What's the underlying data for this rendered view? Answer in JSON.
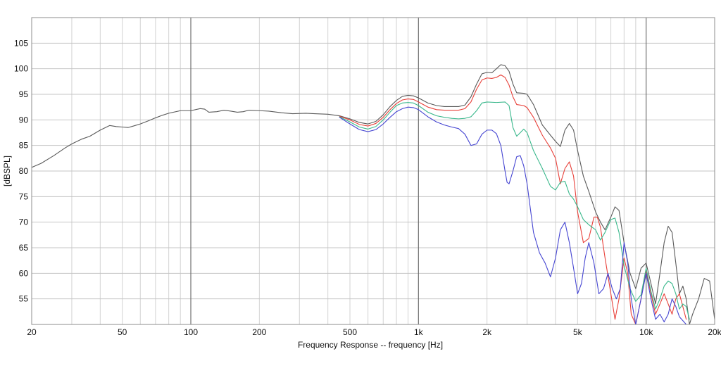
{
  "chart_data": {
    "type": "line",
    "title": "",
    "xlabel": "Frequency Response -- frequency [Hz]",
    "ylabel": "[dBSPL]",
    "xscale": "log",
    "xlim": [
      20,
      20000
    ],
    "ylim": [
      50,
      110
    ],
    "grid": true,
    "legend": "none",
    "x_ticks": [
      {
        "value": 20,
        "label": "20"
      },
      {
        "value": 50,
        "label": "50"
      },
      {
        "value": 100,
        "label": "100"
      },
      {
        "value": 200,
        "label": "200"
      },
      {
        "value": 500,
        "label": "500"
      },
      {
        "value": 1000,
        "label": "1k"
      },
      {
        "value": 2000,
        "label": "2k"
      },
      {
        "value": 5000,
        "label": "5k"
      },
      {
        "value": 10000,
        "label": "10k"
      },
      {
        "value": 20000,
        "label": "20k"
      }
    ],
    "y_ticks": [
      55,
      60,
      65,
      70,
      75,
      80,
      85,
      90,
      95,
      100,
      105
    ],
    "series": [
      {
        "color": "#5a5a5a",
        "points": [
          [
            20,
            80.7
          ],
          [
            22,
            81.5
          ],
          [
            25,
            83
          ],
          [
            28,
            84.5
          ],
          [
            30,
            85.3
          ],
          [
            33,
            86.2
          ],
          [
            36,
            86.8
          ],
          [
            40,
            88
          ],
          [
            44,
            88.9
          ],
          [
            47,
            88.7
          ],
          [
            50,
            88.6
          ],
          [
            53,
            88.5
          ],
          [
            56,
            88.8
          ],
          [
            60,
            89.2
          ],
          [
            65,
            89.8
          ],
          [
            70,
            90.4
          ],
          [
            75,
            90.9
          ],
          [
            80,
            91.3
          ],
          [
            90,
            91.8
          ],
          [
            100,
            91.8
          ],
          [
            110,
            92.2
          ],
          [
            115,
            92.1
          ],
          [
            120,
            91.5
          ],
          [
            130,
            91.6
          ],
          [
            140,
            91.9
          ],
          [
            150,
            91.7
          ],
          [
            160,
            91.5
          ],
          [
            170,
            91.6
          ],
          [
            180,
            91.9
          ],
          [
            200,
            91.8
          ],
          [
            220,
            91.7
          ],
          [
            250,
            91.4
          ],
          [
            280,
            91.2
          ],
          [
            320,
            91.3
          ],
          [
            350,
            91.2
          ],
          [
            400,
            91.1
          ],
          [
            450,
            90.8
          ],
          [
            500,
            90.2
          ],
          [
            550,
            89.5
          ],
          [
            600,
            89.2
          ],
          [
            650,
            89.7
          ],
          [
            700,
            91
          ],
          [
            750,
            92.6
          ],
          [
            800,
            93.8
          ],
          [
            850,
            94.6
          ],
          [
            900,
            94.8
          ],
          [
            950,
            94.7
          ],
          [
            1000,
            94.3
          ],
          [
            1100,
            93.3
          ],
          [
            1200,
            92.8
          ],
          [
            1300,
            92.6
          ],
          [
            1400,
            92.6
          ],
          [
            1500,
            92.6
          ],
          [
            1600,
            92.9
          ],
          [
            1700,
            94.5
          ],
          [
            1800,
            97
          ],
          [
            1900,
            99
          ],
          [
            2000,
            99.3
          ],
          [
            2100,
            99.2
          ],
          [
            2200,
            100
          ],
          [
            2300,
            100.8
          ],
          [
            2400,
            100.6
          ],
          [
            2500,
            99.5
          ],
          [
            2600,
            97
          ],
          [
            2700,
            95.3
          ],
          [
            2900,
            95.2
          ],
          [
            3000,
            95
          ],
          [
            3200,
            93
          ],
          [
            3500,
            89
          ],
          [
            3800,
            87
          ],
          [
            4000,
            85.8
          ],
          [
            4200,
            84.8
          ],
          [
            4400,
            88
          ],
          [
            4600,
            89.3
          ],
          [
            4800,
            88
          ],
          [
            5000,
            84
          ],
          [
            5300,
            79
          ],
          [
            5600,
            76
          ],
          [
            6000,
            72
          ],
          [
            6300,
            70
          ],
          [
            6600,
            68.5
          ],
          [
            7000,
            71
          ],
          [
            7300,
            73
          ],
          [
            7600,
            72.3
          ],
          [
            8000,
            66
          ],
          [
            8500,
            60
          ],
          [
            9000,
            57
          ],
          [
            9500,
            61
          ],
          [
            10000,
            62
          ],
          [
            10500,
            58
          ],
          [
            11000,
            54
          ],
          [
            11500,
            60
          ],
          [
            12000,
            66
          ],
          [
            12500,
            69.2
          ],
          [
            13000,
            68
          ],
          [
            13500,
            62
          ],
          [
            14000,
            56
          ],
          [
            14500,
            57.5
          ],
          [
            15000,
            55
          ],
          [
            15500,
            50
          ],
          [
            16000,
            52
          ],
          [
            17000,
            55
          ],
          [
            18000,
            59
          ],
          [
            19000,
            58.5
          ],
          [
            20000,
            51
          ]
        ]
      },
      {
        "color": "#e8413a",
        "points": [
          [
            450,
            90.7
          ],
          [
            500,
            90
          ],
          [
            550,
            89.1
          ],
          [
            600,
            88.8
          ],
          [
            650,
            89.3
          ],
          [
            700,
            90.5
          ],
          [
            750,
            92
          ],
          [
            800,
            93.2
          ],
          [
            850,
            93.9
          ],
          [
            900,
            94.1
          ],
          [
            950,
            94
          ],
          [
            1000,
            93.5
          ],
          [
            1100,
            92.5
          ],
          [
            1200,
            92
          ],
          [
            1300,
            91.9
          ],
          [
            1400,
            91.9
          ],
          [
            1500,
            91.9
          ],
          [
            1600,
            92.2
          ],
          [
            1700,
            93.5
          ],
          [
            1800,
            96
          ],
          [
            1900,
            97.8
          ],
          [
            2000,
            98.2
          ],
          [
            2100,
            98.1
          ],
          [
            2200,
            98.3
          ],
          [
            2300,
            98.8
          ],
          [
            2400,
            98.3
          ],
          [
            2500,
            96.8
          ],
          [
            2600,
            94.5
          ],
          [
            2700,
            93
          ],
          [
            2900,
            92.8
          ],
          [
            3000,
            92.4
          ],
          [
            3200,
            90.5
          ],
          [
            3500,
            87
          ],
          [
            3800,
            84.5
          ],
          [
            4000,
            82.5
          ],
          [
            4200,
            77.5
          ],
          [
            4400,
            80.5
          ],
          [
            4600,
            81.8
          ],
          [
            4800,
            79
          ],
          [
            5000,
            72
          ],
          [
            5300,
            66
          ],
          [
            5600,
            66.8
          ],
          [
            5900,
            71
          ],
          [
            6100,
            71
          ],
          [
            6300,
            69
          ],
          [
            6600,
            63
          ],
          [
            7000,
            56
          ],
          [
            7300,
            51
          ],
          [
            7600,
            55
          ],
          [
            8000,
            63
          ],
          [
            8300,
            60
          ],
          [
            8600,
            52
          ],
          [
            9000,
            50
          ],
          [
            9500,
            55
          ],
          [
            10000,
            60.5
          ],
          [
            10500,
            56
          ],
          [
            11000,
            52
          ],
          [
            11500,
            54
          ],
          [
            12000,
            56
          ],
          [
            12500,
            54
          ],
          [
            13000,
            52
          ],
          [
            13500,
            55
          ],
          [
            14000,
            56
          ],
          [
            15000,
            51
          ]
        ]
      },
      {
        "color": "#3ab88c",
        "points": [
          [
            450,
            90.6
          ],
          [
            500,
            89.6
          ],
          [
            550,
            88.6
          ],
          [
            600,
            88.2
          ],
          [
            650,
            88.7
          ],
          [
            700,
            90
          ],
          [
            750,
            91.5
          ],
          [
            800,
            92.8
          ],
          [
            850,
            93.3
          ],
          [
            900,
            93.4
          ],
          [
            950,
            93.3
          ],
          [
            1000,
            92.8
          ],
          [
            1100,
            91.5
          ],
          [
            1200,
            90.8
          ],
          [
            1300,
            90.5
          ],
          [
            1400,
            90.3
          ],
          [
            1500,
            90.2
          ],
          [
            1600,
            90.3
          ],
          [
            1700,
            90.6
          ],
          [
            1800,
            91.8
          ],
          [
            1900,
            93.3
          ],
          [
            2000,
            93.5
          ],
          [
            2200,
            93.4
          ],
          [
            2400,
            93.5
          ],
          [
            2500,
            92.8
          ],
          [
            2600,
            88.5
          ],
          [
            2700,
            86.8
          ],
          [
            2800,
            87.5
          ],
          [
            2900,
            88.2
          ],
          [
            3000,
            87.5
          ],
          [
            3200,
            84
          ],
          [
            3500,
            80.5
          ],
          [
            3800,
            77
          ],
          [
            4000,
            76.3
          ],
          [
            4200,
            77.8
          ],
          [
            4400,
            78
          ],
          [
            4600,
            75.5
          ],
          [
            4800,
            74.5
          ],
          [
            5000,
            73
          ],
          [
            5300,
            70.5
          ],
          [
            5600,
            69.5
          ],
          [
            6000,
            68.5
          ],
          [
            6300,
            66.5
          ],
          [
            6600,
            68
          ],
          [
            7000,
            70.5
          ],
          [
            7300,
            70.8
          ],
          [
            7600,
            68
          ],
          [
            8000,
            61.5
          ],
          [
            8500,
            57
          ],
          [
            9000,
            54.5
          ],
          [
            9500,
            55.8
          ],
          [
            10000,
            61
          ],
          [
            10500,
            56.5
          ],
          [
            11000,
            53
          ],
          [
            11500,
            55
          ],
          [
            12000,
            57.5
          ],
          [
            12500,
            58.5
          ],
          [
            13000,
            58
          ],
          [
            13500,
            56
          ],
          [
            14000,
            53
          ],
          [
            14500,
            54
          ],
          [
            15000,
            53.5
          ],
          [
            15500,
            51
          ]
        ]
      },
      {
        "color": "#4646d2",
        "points": [
          [
            450,
            90.5
          ],
          [
            500,
            89.2
          ],
          [
            550,
            88.1
          ],
          [
            600,
            87.7
          ],
          [
            650,
            88.1
          ],
          [
            700,
            89.2
          ],
          [
            750,
            90.5
          ],
          [
            800,
            91.6
          ],
          [
            850,
            92.2
          ],
          [
            900,
            92.5
          ],
          [
            950,
            92.4
          ],
          [
            1000,
            92
          ],
          [
            1100,
            90.6
          ],
          [
            1200,
            89.6
          ],
          [
            1300,
            89
          ],
          [
            1400,
            88.6
          ],
          [
            1500,
            88.3
          ],
          [
            1600,
            87.2
          ],
          [
            1700,
            85
          ],
          [
            1800,
            85.3
          ],
          [
            1900,
            87.2
          ],
          [
            2000,
            88
          ],
          [
            2100,
            88
          ],
          [
            2200,
            87.3
          ],
          [
            2300,
            85
          ],
          [
            2400,
            80
          ],
          [
            2450,
            77.8
          ],
          [
            2500,
            77.5
          ],
          [
            2600,
            80
          ],
          [
            2700,
            82.8
          ],
          [
            2800,
            83
          ],
          [
            2900,
            81
          ],
          [
            3000,
            77.5
          ],
          [
            3200,
            68
          ],
          [
            3400,
            64
          ],
          [
            3600,
            62
          ],
          [
            3800,
            59.3
          ],
          [
            4000,
            63
          ],
          [
            4200,
            68.5
          ],
          [
            4400,
            70
          ],
          [
            4600,
            66
          ],
          [
            4800,
            61
          ],
          [
            5000,
            56
          ],
          [
            5200,
            58
          ],
          [
            5400,
            63
          ],
          [
            5600,
            66
          ],
          [
            5900,
            62
          ],
          [
            6200,
            56
          ],
          [
            6500,
            57
          ],
          [
            6800,
            60
          ],
          [
            7100,
            57
          ],
          [
            7400,
            55
          ],
          [
            7700,
            57
          ],
          [
            8000,
            66
          ],
          [
            8300,
            62
          ],
          [
            8600,
            55
          ],
          [
            9000,
            50
          ],
          [
            9500,
            55
          ],
          [
            10000,
            60
          ],
          [
            10500,
            55
          ],
          [
            11000,
            51
          ],
          [
            11500,
            52
          ],
          [
            12000,
            50.5
          ],
          [
            12500,
            52
          ],
          [
            13000,
            55
          ],
          [
            13500,
            53.5
          ],
          [
            14000,
            51.5
          ],
          [
            15000,
            50
          ]
        ]
      }
    ]
  }
}
